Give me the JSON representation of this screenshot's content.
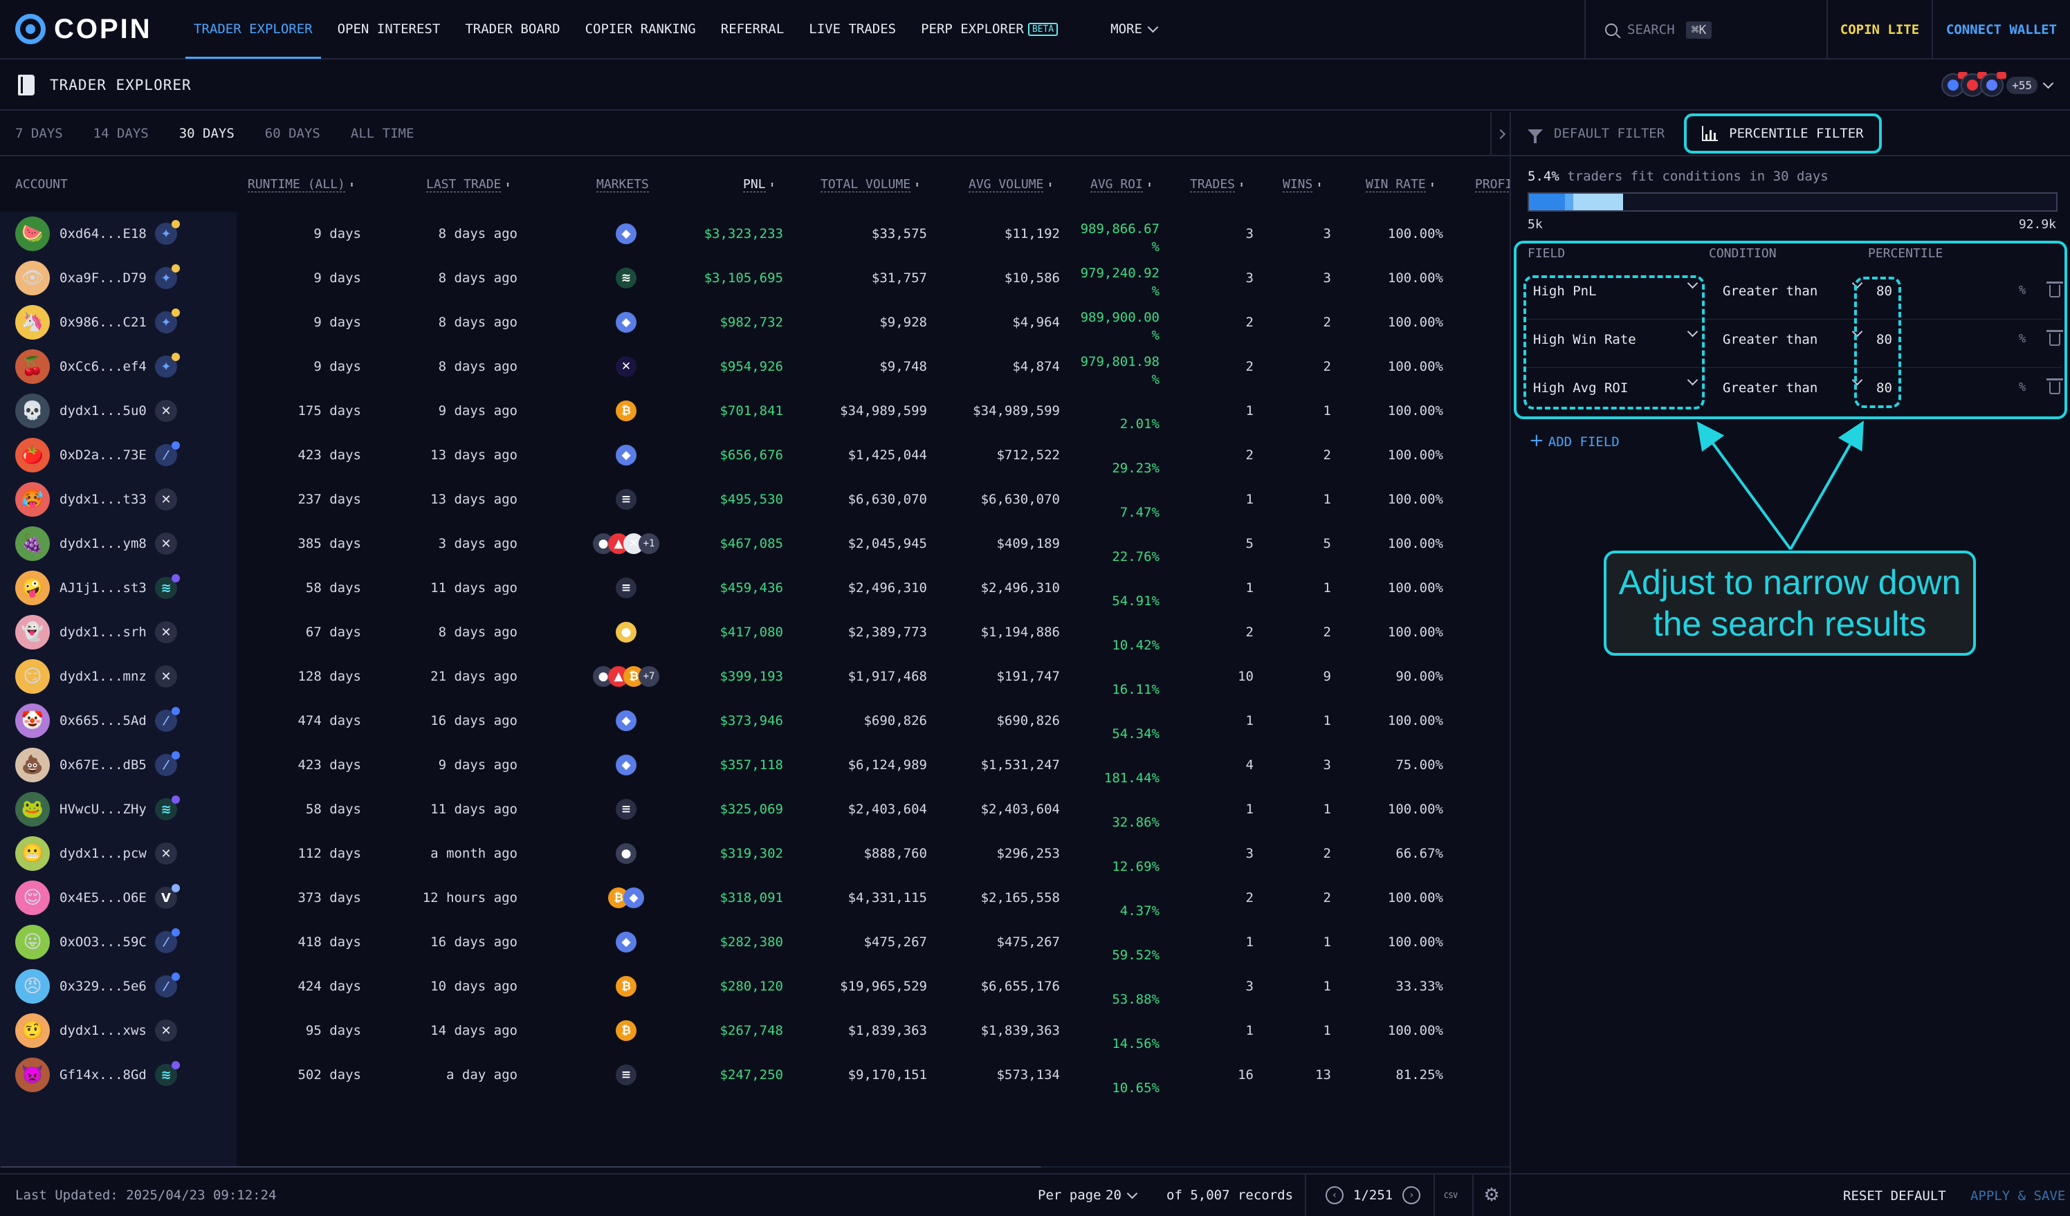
{
  "nav": {
    "logo": "COPIN",
    "items": [
      {
        "label": "TRADER EXPLORER",
        "active": true
      },
      {
        "label": "OPEN INTEREST"
      },
      {
        "label": "TRADER BOARD"
      },
      {
        "label": "COPIER RANKING"
      },
      {
        "label": "REFERRAL"
      },
      {
        "label": "LIVE TRADES"
      },
      {
        "label": "PERP EXPLORER"
      }
    ],
    "beta": "BETA",
    "more": "MORE",
    "search": "SEARCH",
    "search_kbd": "⌘K",
    "copin_lite": "COPIN LITE",
    "connect_wallet": "CONNECT WALLET"
  },
  "subheader": {
    "title": "TRADER EXPLORER",
    "protocols_more": "+55"
  },
  "time_tabs": [
    "7 DAYS",
    "14 DAYS",
    "30 DAYS",
    "60 DAYS",
    "ALL TIME"
  ],
  "active_time_tab": "30 DAYS",
  "columns": {
    "account": "ACCOUNT",
    "runtime": "RUNTIME (ALL)",
    "last_trade": "LAST TRADE",
    "markets": "MARKETS",
    "pnl": "PNL",
    "total_volume": "TOTAL VOLUME",
    "avg_volume": "AVG VOLUME",
    "avg_roi": "AVG ROI",
    "trades": "TRADES",
    "wins": "WINS",
    "win_rate": "WIN RATE",
    "profit": "PROFI"
  },
  "rows": [
    {
      "account": "0xd64...E18",
      "runtime": "9 days",
      "last_trade": "8 days ago",
      "pnl": "$3,323,233",
      "total_volume": "$33,575",
      "avg_volume": "$11,192",
      "roi1": "989,866.67",
      "roi2": "%",
      "trades": "3",
      "wins": "3",
      "win_rate": "100.00%"
    },
    {
      "account": "0xa9F...D79",
      "runtime": "9 days",
      "last_trade": "8 days ago",
      "pnl": "$3,105,695",
      "total_volume": "$31,757",
      "avg_volume": "$10,586",
      "roi1": "979,240.92",
      "roi2": "%",
      "trades": "3",
      "wins": "3",
      "win_rate": "100.00%"
    },
    {
      "account": "0x986...C21",
      "runtime": "9 days",
      "last_trade": "8 days ago",
      "pnl": "$982,732",
      "total_volume": "$9,928",
      "avg_volume": "$4,964",
      "roi1": "989,900.00",
      "roi2": "%",
      "trades": "2",
      "wins": "2",
      "win_rate": "100.00%"
    },
    {
      "account": "0xCc6...ef4",
      "runtime": "9 days",
      "last_trade": "8 days ago",
      "pnl": "$954,926",
      "total_volume": "$9,748",
      "avg_volume": "$4,874",
      "roi1": "979,801.98",
      "roi2": "%",
      "trades": "2",
      "wins": "2",
      "win_rate": "100.00%"
    },
    {
      "account": "dydx1...5u0",
      "runtime": "175 days",
      "last_trade": "9 days ago",
      "pnl": "$701,841",
      "total_volume": "$34,989,599",
      "avg_volume": "$34,989,599",
      "roi1": "2.01%",
      "roi2": "",
      "trades": "1",
      "wins": "1",
      "win_rate": "100.00%"
    },
    {
      "account": "0xD2a...73E",
      "runtime": "423 days",
      "last_trade": "13 days ago",
      "pnl": "$656,676",
      "total_volume": "$1,425,044",
      "avg_volume": "$712,522",
      "roi1": "29.23%",
      "roi2": "",
      "trades": "2",
      "wins": "2",
      "win_rate": "100.00%"
    },
    {
      "account": "dydx1...t33",
      "runtime": "237 days",
      "last_trade": "13 days ago",
      "pnl": "$495,530",
      "total_volume": "$6,630,070",
      "avg_volume": "$6,630,070",
      "roi1": "7.47%",
      "roi2": "",
      "trades": "1",
      "wins": "1",
      "win_rate": "100.00%"
    },
    {
      "account": "dydx1...ym8",
      "runtime": "385 days",
      "last_trade": "3 days ago",
      "pnl": "$467,085",
      "total_volume": "$2,045,945",
      "avg_volume": "$409,189",
      "roi1": "22.76%",
      "roi2": "",
      "trades": "5",
      "wins": "5",
      "win_rate": "100.00%"
    },
    {
      "account": "AJ1j1...st3",
      "runtime": "58 days",
      "last_trade": "11 days ago",
      "pnl": "$459,436",
      "total_volume": "$2,496,310",
      "avg_volume": "$2,496,310",
      "roi1": "54.91%",
      "roi2": "",
      "trades": "1",
      "wins": "1",
      "win_rate": "100.00%"
    },
    {
      "account": "dydx1...srh",
      "runtime": "67 days",
      "last_trade": "8 days ago",
      "pnl": "$417,080",
      "total_volume": "$2,389,773",
      "avg_volume": "$1,194,886",
      "roi1": "10.42%",
      "roi2": "",
      "trades": "2",
      "wins": "2",
      "win_rate": "100.00%"
    },
    {
      "account": "dydx1...mnz",
      "runtime": "128 days",
      "last_trade": "21 days ago",
      "pnl": "$399,193",
      "total_volume": "$1,917,468",
      "avg_volume": "$191,747",
      "roi1": "16.11%",
      "roi2": "",
      "trades": "10",
      "wins": "9",
      "win_rate": "90.00%"
    },
    {
      "account": "0x665...5Ad",
      "runtime": "474 days",
      "last_trade": "16 days ago",
      "pnl": "$373,946",
      "total_volume": "$690,826",
      "avg_volume": "$690,826",
      "roi1": "54.34%",
      "roi2": "",
      "trades": "1",
      "wins": "1",
      "win_rate": "100.00%"
    },
    {
      "account": "0x67E...dB5",
      "runtime": "423 days",
      "last_trade": "9 days ago",
      "pnl": "$357,118",
      "total_volume": "$6,124,989",
      "avg_volume": "$1,531,247",
      "roi1": "181.44%",
      "roi2": "",
      "trades": "4",
      "wins": "3",
      "win_rate": "75.00%"
    },
    {
      "account": "HVwcU...ZHy",
      "runtime": "58 days",
      "last_trade": "11 days ago",
      "pnl": "$325,069",
      "total_volume": "$2,403,604",
      "avg_volume": "$2,403,604",
      "roi1": "32.86%",
      "roi2": "",
      "trades": "1",
      "wins": "1",
      "win_rate": "100.00%"
    },
    {
      "account": "dydx1...pcw",
      "runtime": "112 days",
      "last_trade": "a month ago",
      "pnl": "$319,302",
      "total_volume": "$888,760",
      "avg_volume": "$296,253",
      "roi1": "12.69%",
      "roi2": "",
      "trades": "3",
      "wins": "2",
      "win_rate": "66.67%"
    },
    {
      "account": "0x4E5...O6E",
      "runtime": "373 days",
      "last_trade": "12 hours ago",
      "pnl": "$318,091",
      "total_volume": "$4,331,115",
      "avg_volume": "$2,165,558",
      "roi1": "4.37%",
      "roi2": "",
      "trades": "2",
      "wins": "2",
      "win_rate": "100.00%"
    },
    {
      "account": "0xOO3...59C",
      "runtime": "418 days",
      "last_trade": "16 days ago",
      "pnl": "$282,380",
      "total_volume": "$475,267",
      "avg_volume": "$475,267",
      "roi1": "59.52%",
      "roi2": "",
      "trades": "1",
      "wins": "1",
      "win_rate": "100.00%"
    },
    {
      "account": "0x329...5e6",
      "runtime": "424 days",
      "last_trade": "10 days ago",
      "pnl": "$280,120",
      "total_volume": "$19,965,529",
      "avg_volume": "$6,655,176",
      "roi1": "53.88%",
      "roi2": "",
      "trades": "3",
      "wins": "1",
      "win_rate": "33.33%"
    },
    {
      "account": "dydx1...xws",
      "runtime": "95 days",
      "last_trade": "14 days ago",
      "pnl": "$267,748",
      "total_volume": "$1,839,363",
      "avg_volume": "$1,839,363",
      "roi1": "14.56%",
      "roi2": "",
      "trades": "1",
      "wins": "1",
      "win_rate": "100.00%"
    },
    {
      "account": "Gf14x...8Gd",
      "runtime": "502 days",
      "last_trade": "a day ago",
      "pnl": "$247,250",
      "total_volume": "$9,170,151",
      "avg_volume": "$573,134",
      "roi1": "10.65%",
      "roi2": "",
      "trades": "16",
      "wins": "13",
      "win_rate": "81.25%"
    }
  ],
  "avatars": [
    "🍉",
    "👁",
    "🦄",
    "🍒",
    "💀",
    "🍅",
    "🥵",
    "🍇",
    "🤪",
    "👻",
    "😏",
    "🤡",
    "💩",
    "🐸",
    "😬",
    "😌",
    "😛",
    "😠",
    "🤨",
    "👿"
  ],
  "avatar_colors": [
    "#3a8a3a",
    "#f0b87a",
    "#f2c44a",
    "#c85a3a",
    "#3a4a5a",
    "#e85a3a",
    "#e8605a",
    "#5a9a4a",
    "#f2a84a",
    "#e8a0b0",
    "#f2b84a",
    "#b07ad8",
    "#d8c0a8",
    "#3a6a4a",
    "#a8c85a",
    "#f070b0",
    "#8ac84a",
    "#5ab8f0",
    "#f2a860",
    "#b05a3a"
  ],
  "protocols": [
    "hl",
    "hl",
    "hl",
    "hl",
    "x",
    "v",
    "x",
    "x",
    "m",
    "x",
    "x",
    "v",
    "v",
    "m",
    "x",
    "z",
    "v",
    "v",
    "x",
    "m"
  ],
  "markets": [
    [
      "eth"
    ],
    [
      "sol-stripe"
    ],
    [
      "eth"
    ],
    [
      "x"
    ],
    [
      "btc"
    ],
    [
      "eth"
    ],
    [
      "ena"
    ],
    [
      "multi-1"
    ],
    [
      "ena"
    ],
    [
      "ip"
    ],
    [
      "multi-7"
    ],
    [
      "eth"
    ],
    [
      "eth"
    ],
    [
      "ena"
    ],
    [
      "pepe"
    ],
    [
      "btc-eth"
    ],
    [
      "eth"
    ],
    [
      "btc"
    ],
    [
      "btc"
    ],
    [
      "ena"
    ]
  ],
  "market_more": {
    "7": "+1",
    "10": "+7"
  },
  "footer": {
    "last_updated": "Last Updated: 2025/04/23 09:12:24",
    "per_page_label": "Per page",
    "per_page_value": "20",
    "records": "of 5,007 records",
    "page": "1/251",
    "csv": "CSV"
  },
  "filter": {
    "tab_default": "DEFAULT FILTER",
    "tab_percentile": "PERCENTILE FILTER",
    "fit_pct": "5.4%",
    "fit_text": "traders fit conditions in 30 days",
    "range_min": "5k",
    "range_max": "92.9k",
    "fit_fraction": 0.054,
    "headers": {
      "field": "FIELD",
      "condition": "CONDITION",
      "percentile": "PERCENTILE"
    },
    "conditions": [
      {
        "field": "High PnL",
        "condition": "Greater than",
        "value": "80",
        "unit": "%"
      },
      {
        "field": "High Win Rate",
        "condition": "Greater than",
        "value": "80",
        "unit": "%"
      },
      {
        "field": "High Avg ROI",
        "condition": "Greater than",
        "value": "80",
        "unit": "%"
      }
    ],
    "add_field": "ADD FIELD",
    "reset": "RESET DEFAULT",
    "apply": "APPLY & SAVE"
  },
  "callout": {
    "line1": "Adjust to narrow down",
    "line2": "the search results"
  },
  "colors": {
    "accent": "#4aa3ff",
    "highlight": "#22d3e0",
    "positive": "#3ddc84",
    "lite": "#f2d44a"
  }
}
